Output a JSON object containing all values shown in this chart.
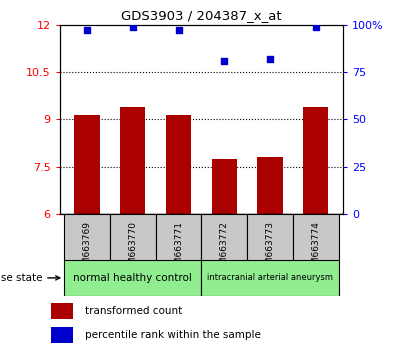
{
  "title": "GDS3903 / 204387_x_at",
  "samples": [
    "GSM663769",
    "GSM663770",
    "GSM663771",
    "GSM663772",
    "GSM663773",
    "GSM663774"
  ],
  "bar_values": [
    9.15,
    9.38,
    9.15,
    7.75,
    7.82,
    9.38
  ],
  "percentile_values": [
    97,
    99,
    97,
    81,
    82,
    99
  ],
  "ylim_left": [
    6,
    12
  ],
  "ylim_right": [
    0,
    100
  ],
  "yticks_left": [
    6,
    7.5,
    9,
    10.5,
    12
  ],
  "yticks_right": [
    0,
    25,
    50,
    75,
    100
  ],
  "ytick_labels_left": [
    "6",
    "7.5",
    "9",
    "10.5",
    "12"
  ],
  "ytick_labels_right": [
    "0",
    "25",
    "50",
    "75",
    "100%"
  ],
  "bar_color": "#AA0000",
  "dot_color": "#0000CC",
  "bar_bottom": 6,
  "bar_width": 0.55,
  "group_box_color": "#C8C8C8",
  "disease_state_label": "disease state",
  "legend_bar_label": "transformed count",
  "legend_dot_label": "percentile rank within the sample",
  "hline_values": [
    7.5,
    9.0,
    10.5
  ],
  "group_labels": [
    "normal healthy control",
    "intracranial arterial aneurysm"
  ],
  "group_color": "#90EE90",
  "group_ranges": [
    [
      0,
      2
    ],
    [
      3,
      5
    ]
  ]
}
